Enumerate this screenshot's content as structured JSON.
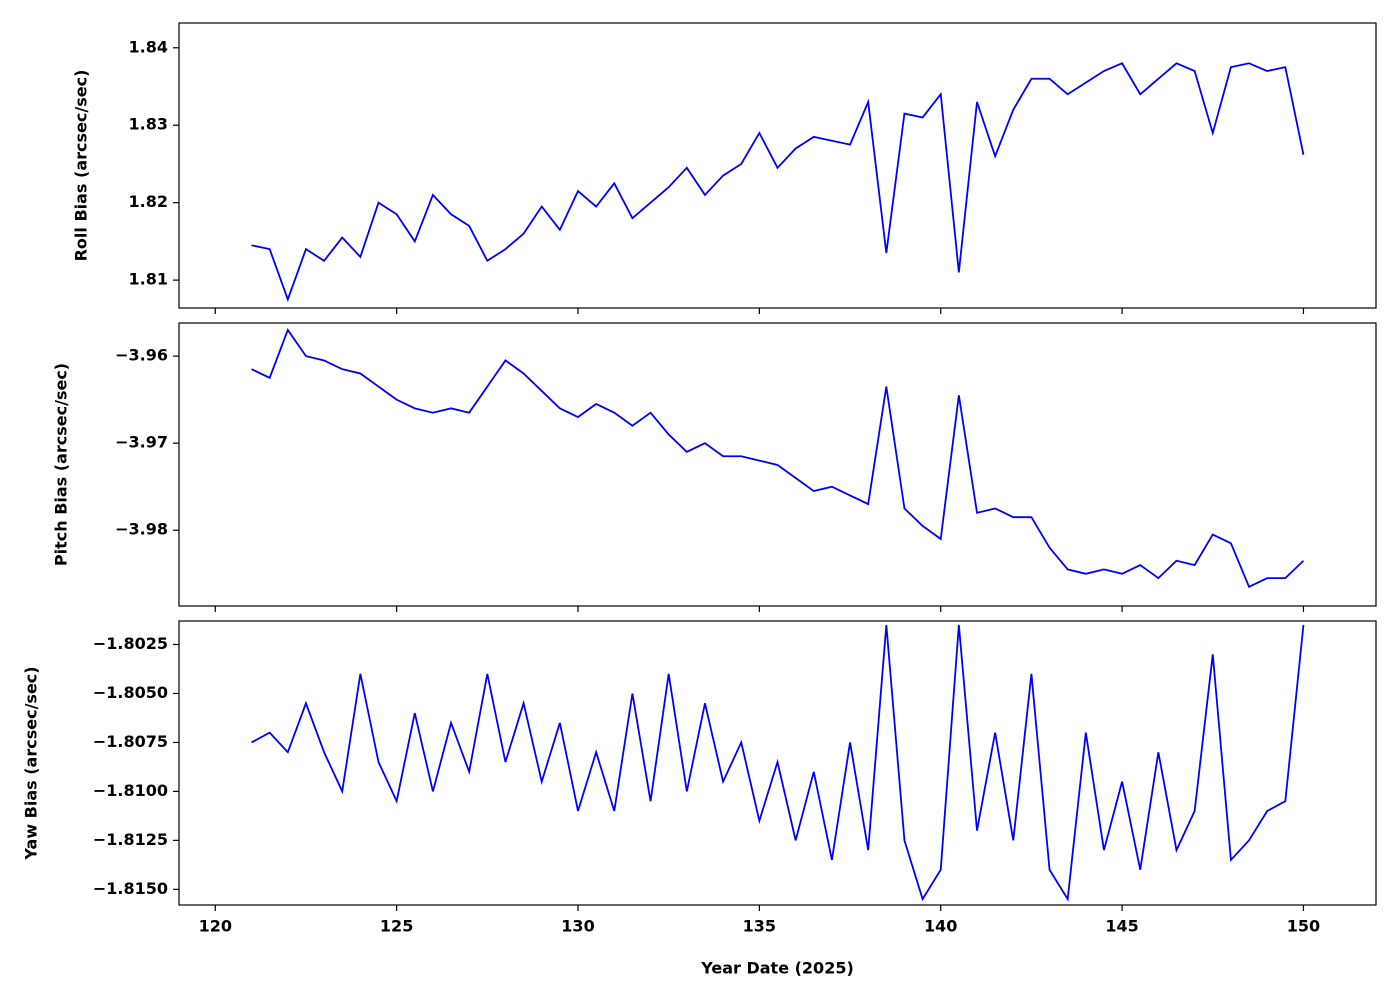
{
  "chart_data": [
    {
      "type": "line",
      "y_label": "Roll Bias (arcsec/sec)",
      "color": "#0000ff",
      "x": [
        121,
        121.5,
        122,
        122.5,
        123,
        123.5,
        124,
        124.5,
        125,
        125.5,
        126,
        126.5,
        127,
        127.5,
        128,
        128.5,
        129,
        129.5,
        130,
        130.5,
        131,
        131.5,
        132,
        132.5,
        133,
        133.5,
        134,
        134.5,
        135,
        135.5,
        136,
        136.5,
        137,
        137.5,
        138,
        138.5,
        139,
        139.5,
        140,
        140.5,
        141,
        141.5,
        142,
        142.5,
        143,
        143.5,
        144,
        144.5,
        145,
        145.5,
        146,
        146.5,
        147,
        147.5,
        148,
        148.5,
        149,
        149.5,
        150
      ],
      "values": [
        1.8145,
        1.814,
        1.8075,
        1.814,
        1.8125,
        1.8155,
        1.813,
        1.82,
        1.8185,
        1.815,
        1.821,
        1.8185,
        1.817,
        1.8125,
        1.814,
        1.816,
        1.8195,
        1.8165,
        1.8215,
        1.8195,
        1.8225,
        1.818,
        1.82,
        1.822,
        1.8245,
        1.821,
        1.8235,
        1.825,
        1.829,
        1.8245,
        1.827,
        1.8285,
        1.828,
        1.8275,
        1.833,
        1.8135,
        1.8315,
        1.831,
        1.834,
        1.811,
        1.833,
        1.826,
        1.832,
        1.836,
        1.836,
        1.834,
        1.8355,
        1.837,
        1.838,
        1.834,
        1.836,
        1.838,
        1.837,
        1.829,
        1.8375,
        1.838,
        1.837,
        1.8375,
        1.8262
      ],
      "xlim": [
        119,
        152
      ],
      "xticks": [
        120,
        125,
        130,
        135,
        140,
        145,
        150
      ],
      "ylim": [
        1.8064,
        1.8432
      ],
      "yticks": [
        1.81,
        1.82,
        1.83,
        1.84
      ]
    },
    {
      "type": "line",
      "y_label": "Pitch Bias (arcsec/sec)",
      "color": "#0000ff",
      "x": [
        121,
        121.5,
        122,
        122.5,
        123,
        123.5,
        124,
        124.5,
        125,
        125.5,
        126,
        126.5,
        127,
        127.5,
        128,
        128.5,
        129,
        129.5,
        130,
        130.5,
        131,
        131.5,
        132,
        132.5,
        133,
        133.5,
        134,
        134.5,
        135,
        135.5,
        136,
        136.5,
        137,
        137.5,
        138,
        138.5,
        139,
        139.5,
        140,
        140.5,
        141,
        141.5,
        142,
        142.5,
        143,
        143.5,
        144,
        144.5,
        145,
        145.5,
        146,
        146.5,
        147,
        147.5,
        148,
        148.5,
        149,
        149.5,
        150
      ],
      "values": [
        -3.9615,
        -3.9625,
        -3.957,
        -3.96,
        -3.9605,
        -3.9615,
        -3.962,
        -3.9635,
        -3.965,
        -3.966,
        -3.9665,
        -3.966,
        -3.9665,
        -3.9635,
        -3.9605,
        -3.962,
        -3.964,
        -3.966,
        -3.967,
        -3.9655,
        -3.9665,
        -3.968,
        -3.9665,
        -3.969,
        -3.971,
        -3.97,
        -3.9715,
        -3.9715,
        -3.972,
        -3.9725,
        -3.974,
        -3.9755,
        -3.975,
        -3.976,
        -3.977,
        -3.9635,
        -3.9775,
        -3.9795,
        -3.981,
        -3.9645,
        -3.978,
        -3.9775,
        -3.9785,
        -3.9785,
        -3.982,
        -3.9845,
        -3.985,
        -3.9845,
        -3.985,
        -3.984,
        -3.9855,
        -3.9835,
        -3.984,
        -3.9805,
        -3.9815,
        -3.9865,
        -3.9855,
        -3.9855,
        -3.9835
      ],
      "xlim": [
        119,
        152
      ],
      "xticks": [
        120,
        125,
        130,
        135,
        140,
        145,
        150
      ],
      "ylim": [
        -3.9887,
        -3.9562
      ],
      "yticks": [
        {
          "value": -3.96,
          "label": "−3.96"
        },
        {
          "value": -3.97,
          "label": "−3.97"
        },
        {
          "value": -3.98,
          "label": "−3.98"
        }
      ]
    },
    {
      "type": "line",
      "y_label": "Yaw Bias (arcsec/sec)",
      "x_label": "Year Date (2025)",
      "color": "#0000ff",
      "x": [
        121,
        121.5,
        122,
        122.5,
        123,
        123.5,
        124,
        124.5,
        125,
        125.5,
        126,
        126.5,
        127,
        127.5,
        128,
        128.5,
        129,
        129.5,
        130,
        130.5,
        131,
        131.5,
        132,
        132.5,
        133,
        133.5,
        134,
        134.5,
        135,
        135.5,
        136,
        136.5,
        137,
        137.5,
        138,
        138.5,
        139,
        139.5,
        140,
        140.5,
        141,
        141.5,
        142,
        142.5,
        143,
        143.5,
        144,
        144.5,
        145,
        145.5,
        146,
        146.5,
        147,
        147.5,
        148,
        148.5,
        149,
        149.5,
        150
      ],
      "values": [
        -1.8075,
        -1.807,
        -1.808,
        -1.8055,
        -1.808,
        -1.81,
        -1.804,
        -1.8085,
        -1.8105,
        -1.806,
        -1.81,
        -1.8065,
        -1.809,
        -1.804,
        -1.8085,
        -1.8055,
        -1.8095,
        -1.8065,
        -1.811,
        -1.808,
        -1.811,
        -1.805,
        -1.8105,
        -1.804,
        -1.81,
        -1.8055,
        -1.8095,
        -1.8075,
        -1.8115,
        -1.8085,
        -1.8125,
        -1.809,
        -1.8135,
        -1.8075,
        -1.813,
        -1.8015,
        -1.8125,
        -1.8155,
        -1.814,
        -1.8015,
        -1.812,
        -1.807,
        -1.8125,
        -1.804,
        -1.814,
        -1.8155,
        -1.807,
        -1.813,
        -1.8095,
        -1.814,
        -1.808,
        -1.813,
        -1.811,
        -1.803,
        -1.8135,
        -1.8125,
        -1.811,
        -1.8105,
        -1.8015
      ],
      "xlim": [
        119,
        152
      ],
      "xticks": [
        120,
        125,
        130,
        135,
        140,
        145,
        150
      ],
      "ylim": [
        -1.8158,
        -1.8013
      ],
      "yticks": [
        {
          "value": -1.8025,
          "label": "−1.8025"
        },
        {
          "value": -1.805,
          "label": "−1.8050"
        },
        {
          "value": -1.8075,
          "label": "−1.8075"
        },
        {
          "value": -1.81,
          "label": "−1.8100"
        },
        {
          "value": -1.8125,
          "label": "−1.8125"
        },
        {
          "value": -1.815,
          "label": "−1.8150"
        }
      ]
    }
  ]
}
